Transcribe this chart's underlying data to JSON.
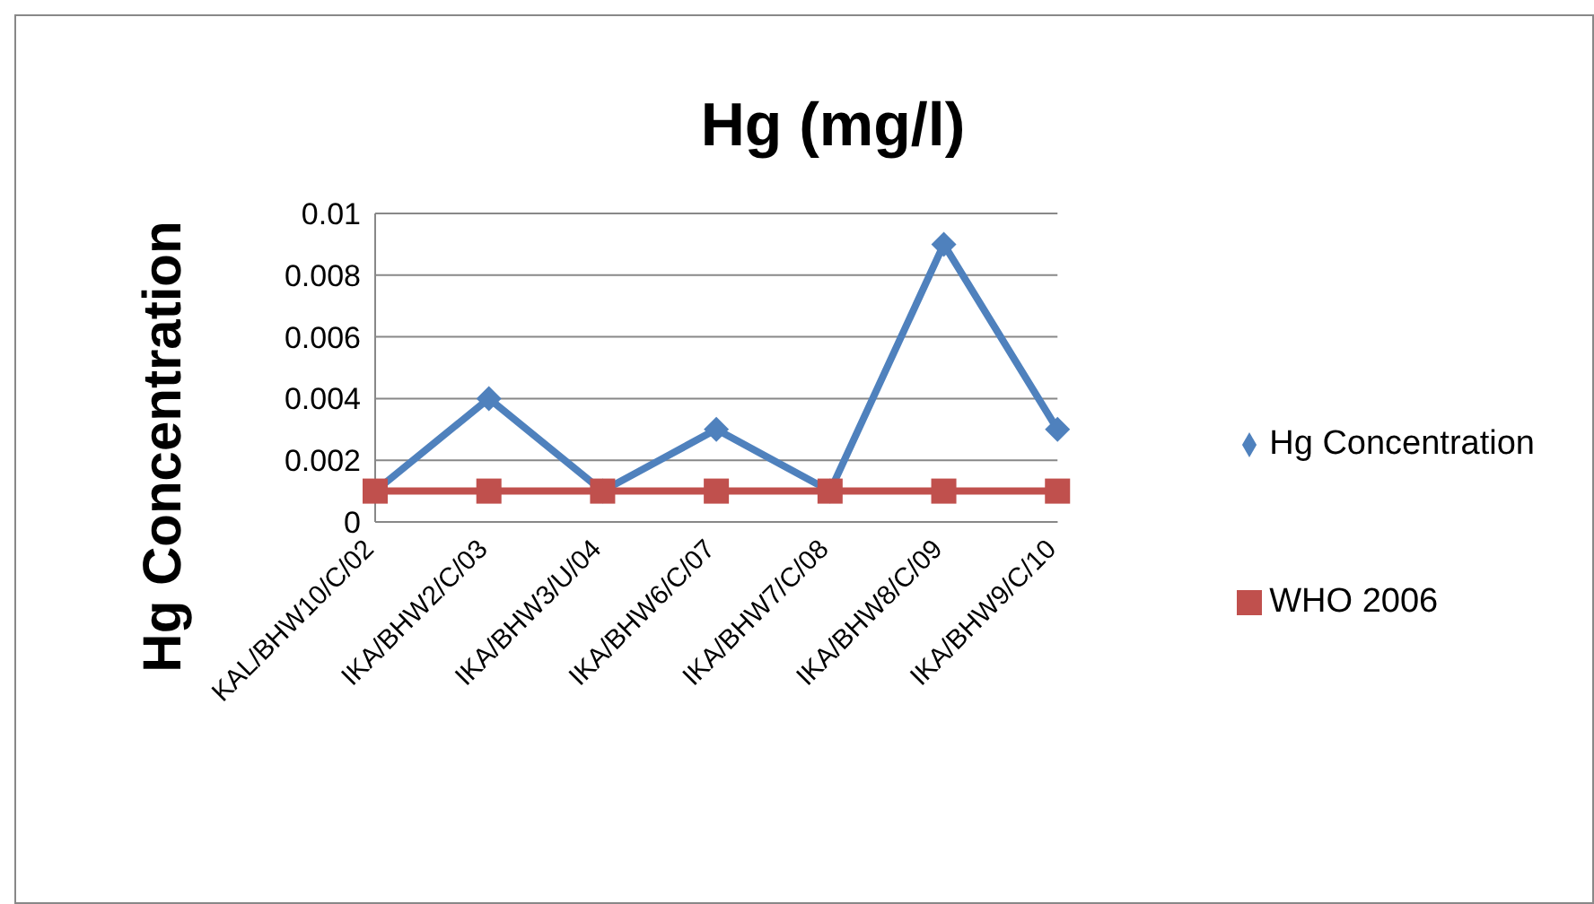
{
  "chart_data": {
    "type": "line",
    "title": "Hg (mg/l)",
    "ylabel": "Hg Concentration",
    "categories": [
      "KAL/BHW10/C/02",
      "IKA/BHW2/C/03",
      "IKA/BHW3/U/04",
      "IKA/BHW6/C/07",
      "IKA/BHW7/C/08",
      "IKA/BHW8/C/09",
      "IKA/BHW9/C/10"
    ],
    "series": [
      {
        "name": "Hg Concentration",
        "color": "#4f81bd",
        "marker": "diamond",
        "values": [
          0.001,
          0.004,
          0.001,
          0.003,
          0.001,
          0.009,
          0.003
        ]
      },
      {
        "name": "WHO 2006",
        "color": "#c0504d",
        "marker": "square",
        "values": [
          0.001,
          0.001,
          0.001,
          0.001,
          0.001,
          0.001,
          0.001
        ]
      }
    ],
    "ylim": [
      0,
      0.01
    ],
    "yticks": [
      0,
      0.002,
      0.004,
      0.006,
      0.008,
      0.01
    ],
    "grid": "y",
    "legend": "right",
    "line_style": "solid"
  }
}
